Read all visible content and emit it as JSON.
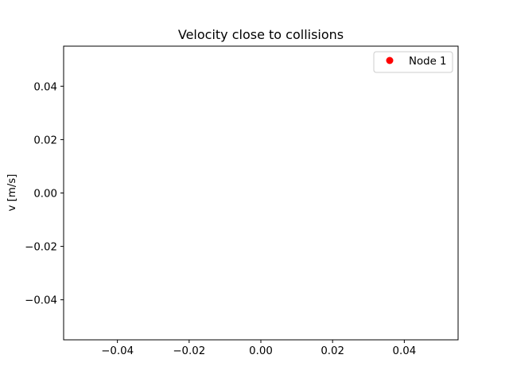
{
  "chart_data": {
    "type": "scatter",
    "title": "Velocity close to collisions",
    "xlabel": "",
    "ylabel": "v [m/s]",
    "xlim": [
      -0.055,
      0.055
    ],
    "ylim": [
      -0.055,
      0.055
    ],
    "xticks": [
      -0.04,
      -0.02,
      0.0,
      0.02,
      0.04
    ],
    "yticks": [
      -0.04,
      -0.02,
      0.0,
      0.02,
      0.04
    ],
    "xtick_labels": [
      "−0.04",
      "−0.02",
      "0.00",
      "0.02",
      "0.04"
    ],
    "ytick_labels": [
      "−0.04",
      "−0.02",
      "0.00",
      "0.02",
      "0.04"
    ],
    "grid": false,
    "legend_position": "top-right",
    "series": [
      {
        "name": "Node 1",
        "color": "#ff0000",
        "marker": "circle",
        "x": [],
        "y": []
      }
    ]
  }
}
